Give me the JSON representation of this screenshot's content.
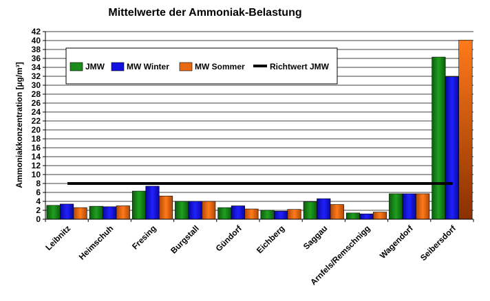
{
  "chart_data": {
    "type": "bar",
    "title": "Mittelwerte der Ammoniak-Belastung",
    "xlabel": "",
    "ylabel": "Ammoniakkonzentration [µg/m³]",
    "ylim": [
      0,
      42
    ],
    "y_ticks": [
      0,
      2,
      4,
      6,
      8,
      10,
      12,
      14,
      16,
      18,
      20,
      22,
      24,
      26,
      28,
      30,
      32,
      34,
      36,
      38,
      40,
      42
    ],
    "grid": true,
    "legend_position": "top-left",
    "categories": [
      "Leibnitz",
      "Heimschuh",
      "Fresing",
      "Burgstall",
      "Gündorf",
      "Eichberg",
      "Saggau",
      "Arnfels/Remschnigg",
      "Wagendorf",
      "Seibersdorf"
    ],
    "series": [
      {
        "name": "JMW",
        "color": "#1a8a1a",
        "values": [
          3.1,
          2.9,
          6.3,
          4.0,
          2.6,
          2.0,
          3.9,
          1.4,
          5.7,
          36.3
        ]
      },
      {
        "name": "MW Winter",
        "color": "#1010e0",
        "values": [
          3.4,
          2.8,
          7.4,
          4.0,
          3.0,
          1.8,
          4.6,
          1.2,
          5.7,
          31.9
        ]
      },
      {
        "name": "MW Sommer",
        "color": "#e86a10",
        "values": [
          2.6,
          3.0,
          5.2,
          4.0,
          2.3,
          2.2,
          3.3,
          1.6,
          5.7,
          40.1
        ]
      }
    ],
    "reference_line": {
      "name": "Richtwert JMW",
      "value": 8,
      "color": "#000000"
    }
  }
}
